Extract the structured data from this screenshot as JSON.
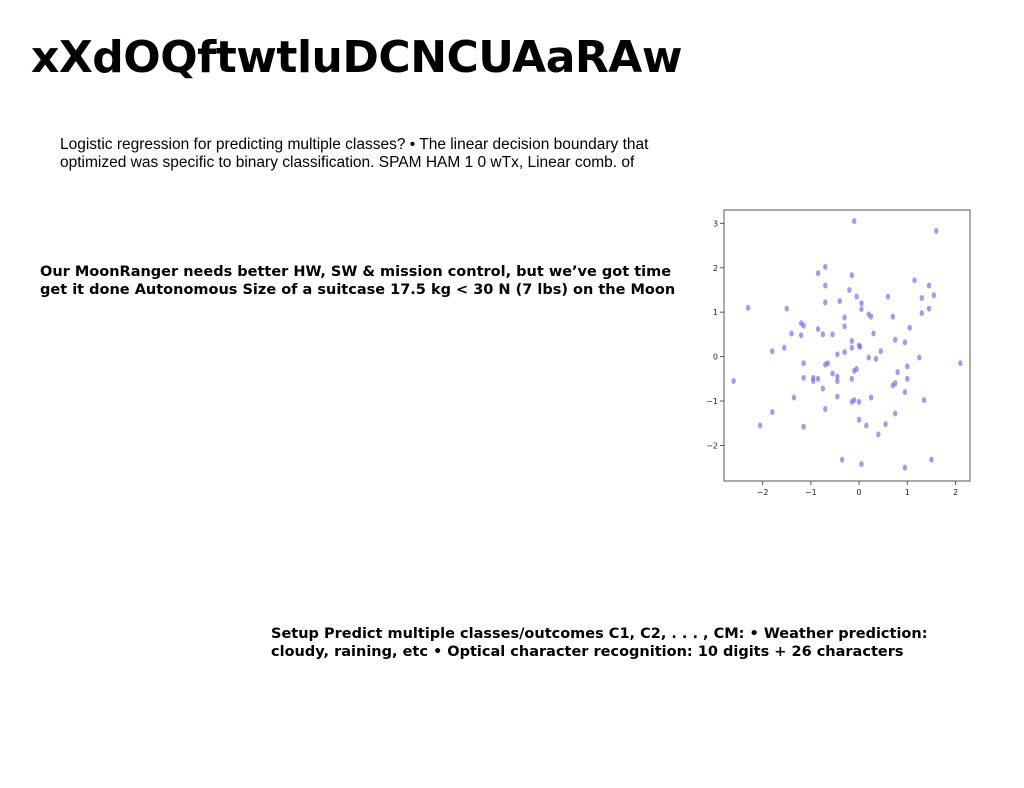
{
  "slide": {
    "title": "xXdOQftwtluDCNCUAaRAw",
    "paragraph_logistic": "Logistic regression for predicting multiple classes? • The linear decision boundary that optimized was specific to binary classification. SPAM HAM 1 0 wTx, Linear comb. of",
    "paragraph_moonranger": "Our MoonRanger needs better HW, SW & mission control, but we’ve got time get it done Autonomous Size of a suitcase 17.5 kg < 30 N (7 lbs) on the Moon",
    "paragraph_setup": "Setup Predict multiple classes/outcomes C1, C2, . . . , CM: • Weather prediction: cloudy, raining, etc • Optical character recognition: 10 digits + 26 characters"
  },
  "chart_data": {
    "type": "scatter",
    "title": "",
    "xlabel": "",
    "ylabel": "",
    "xlim": [
      -2.8,
      2.3
    ],
    "ylim": [
      -2.8,
      3.3
    ],
    "x_ticks": [
      -2,
      -1,
      0,
      1,
      2
    ],
    "y_ticks": [
      -2,
      -1,
      0,
      1,
      2,
      3
    ],
    "grid": false,
    "marker_color": "#6a6ae0",
    "points": [
      {
        "x": -0.1,
        "y": 3.05
      },
      {
        "x": 1.6,
        "y": 2.83
      },
      {
        "x": -0.7,
        "y": 2.02
      },
      {
        "x": -0.85,
        "y": 1.88
      },
      {
        "x": -0.15,
        "y": 1.83
      },
      {
        "x": 1.15,
        "y": 1.72
      },
      {
        "x": -0.7,
        "y": 1.6
      },
      {
        "x": 1.45,
        "y": 1.6
      },
      {
        "x": -0.2,
        "y": 1.5
      },
      {
        "x": 1.55,
        "y": 1.38
      },
      {
        "x": -0.05,
        "y": 1.35
      },
      {
        "x": 0.6,
        "y": 1.35
      },
      {
        "x": 1.3,
        "y": 1.32
      },
      {
        "x": -0.4,
        "y": 1.25
      },
      {
        "x": -0.7,
        "y": 1.22
      },
      {
        "x": 0.05,
        "y": 1.2
      },
      {
        "x": -2.3,
        "y": 1.1
      },
      {
        "x": -1.5,
        "y": 1.08
      },
      {
        "x": 1.45,
        "y": 1.08
      },
      {
        "x": 0.05,
        "y": 1.07
      },
      {
        "x": 1.3,
        "y": 0.98
      },
      {
        "x": 0.2,
        "y": 0.95
      },
      {
        "x": 0.25,
        "y": 0.9
      },
      {
        "x": 0.7,
        "y": 0.9
      },
      {
        "x": -0.3,
        "y": 0.88
      },
      {
        "x": -1.2,
        "y": 0.75
      },
      {
        "x": -1.15,
        "y": 0.7
      },
      {
        "x": -0.3,
        "y": 0.68
      },
      {
        "x": 1.05,
        "y": 0.65
      },
      {
        "x": -0.85,
        "y": 0.62
      },
      {
        "x": -1.4,
        "y": 0.52
      },
      {
        "x": 0.3,
        "y": 0.52
      },
      {
        "x": -0.75,
        "y": 0.5
      },
      {
        "x": -0.55,
        "y": 0.5
      },
      {
        "x": -1.2,
        "y": 0.48
      },
      {
        "x": 0.75,
        "y": 0.38
      },
      {
        "x": -0.15,
        "y": 0.35
      },
      {
        "x": 0.95,
        "y": 0.32
      },
      {
        "x": 0.0,
        "y": 0.25
      },
      {
        "x": 0.02,
        "y": 0.22
      },
      {
        "x": -1.55,
        "y": 0.2
      },
      {
        "x": -0.15,
        "y": 0.2
      },
      {
        "x": -1.8,
        "y": 0.12
      },
      {
        "x": 0.45,
        "y": 0.12
      },
      {
        "x": -0.3,
        "y": 0.1
      },
      {
        "x": -0.45,
        "y": 0.05
      },
      {
        "x": 0.2,
        "y": -0.02
      },
      {
        "x": 0.35,
        "y": -0.05
      },
      {
        "x": 1.25,
        "y": -0.02
      },
      {
        "x": -0.65,
        "y": -0.15
      },
      {
        "x": -1.15,
        "y": -0.15
      },
      {
        "x": -0.7,
        "y": -0.18
      },
      {
        "x": 1.0,
        "y": -0.22
      },
      {
        "x": 2.1,
        "y": -0.15
      },
      {
        "x": -0.05,
        "y": -0.28
      },
      {
        "x": -0.1,
        "y": -0.32
      },
      {
        "x": 0.8,
        "y": -0.35
      },
      {
        "x": -0.55,
        "y": -0.38
      },
      {
        "x": -0.45,
        "y": -0.45
      },
      {
        "x": -1.15,
        "y": -0.48
      },
      {
        "x": -0.95,
        "y": -0.48
      },
      {
        "x": -0.85,
        "y": -0.5
      },
      {
        "x": -0.15,
        "y": -0.5
      },
      {
        "x": 1.0,
        "y": -0.5
      },
      {
        "x": -0.45,
        "y": -0.55
      },
      {
        "x": -0.95,
        "y": -0.55
      },
      {
        "x": -2.6,
        "y": -0.55
      },
      {
        "x": 0.75,
        "y": -0.6
      },
      {
        "x": 0.7,
        "y": -0.65
      },
      {
        "x": -0.75,
        "y": -0.72
      },
      {
        "x": 0.95,
        "y": -0.8
      },
      {
        "x": -0.45,
        "y": -0.9
      },
      {
        "x": -1.35,
        "y": -0.92
      },
      {
        "x": 0.25,
        "y": -0.92
      },
      {
        "x": 1.35,
        "y": -0.98
      },
      {
        "x": -0.1,
        "y": -0.98
      },
      {
        "x": -0.15,
        "y": -1.02
      },
      {
        "x": 0.0,
        "y": -1.02
      },
      {
        "x": -0.7,
        "y": -1.18
      },
      {
        "x": -1.8,
        "y": -1.25
      },
      {
        "x": 0.75,
        "y": -1.28
      },
      {
        "x": 0.0,
        "y": -1.42
      },
      {
        "x": 0.55,
        "y": -1.52
      },
      {
        "x": 0.15,
        "y": -1.55
      },
      {
        "x": -2.05,
        "y": -1.55
      },
      {
        "x": -1.15,
        "y": -1.58
      },
      {
        "x": 0.4,
        "y": -1.75
      },
      {
        "x": -0.35,
        "y": -2.32
      },
      {
        "x": 1.5,
        "y": -2.32
      },
      {
        "x": 0.05,
        "y": -2.42
      },
      {
        "x": 0.95,
        "y": -2.5
      }
    ]
  }
}
